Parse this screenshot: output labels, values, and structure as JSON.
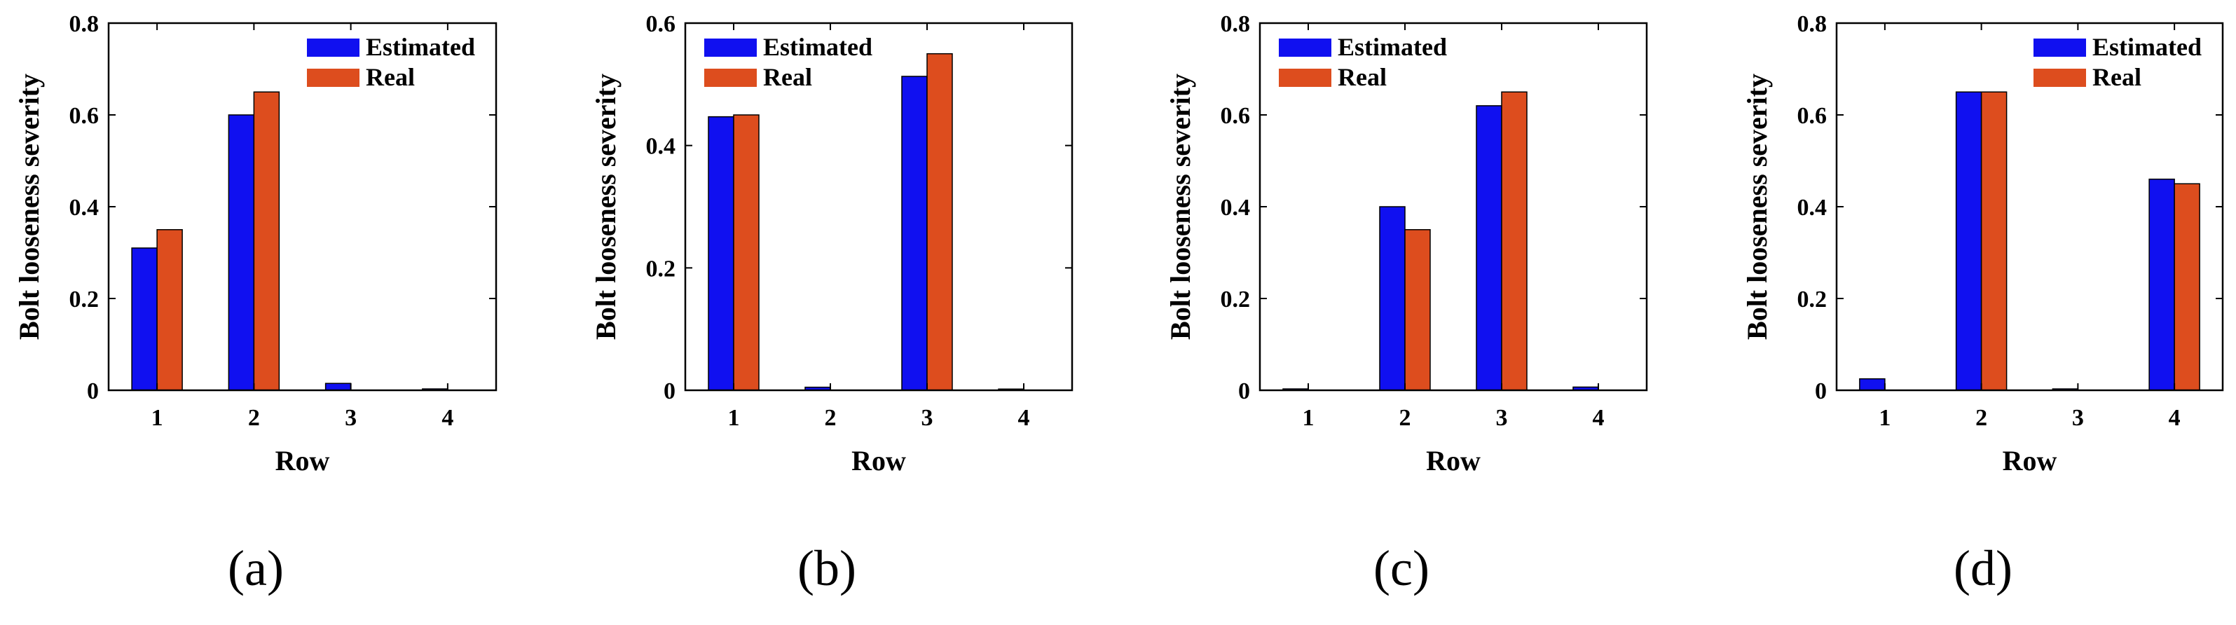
{
  "figure": {
    "colors": {
      "estimated": "#1010f0",
      "real": "#dd4d1e",
      "axis": "#000000"
    }
  },
  "chart_data": [
    {
      "type": "bar",
      "panel_label": "(a)",
      "categories": [
        "1",
        "2",
        "3",
        "4"
      ],
      "series": [
        {
          "name": "Estimated",
          "values": [
            0.31,
            0.6,
            0.015,
            0.003
          ]
        },
        {
          "name": "Real",
          "values": [
            0.35,
            0.65,
            0.0,
            0.0
          ]
        }
      ],
      "xlabel": "Row",
      "ylabel": "Bolt looseness severity",
      "ylim": [
        0,
        0.8
      ],
      "yticks": [
        0,
        0.2,
        0.4,
        0.6,
        0.8
      ],
      "ytick_labels": [
        "0",
        "0.2",
        "0.4",
        "0.6",
        "0.8"
      ],
      "legend_position": "top-right",
      "grid": false
    },
    {
      "type": "bar",
      "panel_label": "(b)",
      "categories": [
        "1",
        "2",
        "3",
        "4"
      ],
      "series": [
        {
          "name": "Estimated",
          "values": [
            0.447,
            0.005,
            0.513,
            0.002
          ]
        },
        {
          "name": "Real",
          "values": [
            0.45,
            0.0,
            0.55,
            0.0
          ]
        }
      ],
      "xlabel": "Row",
      "ylabel": "Bolt looseness severity",
      "ylim": [
        0,
        0.6
      ],
      "yticks": [
        0,
        0.2,
        0.4,
        0.6
      ],
      "ytick_labels": [
        "0",
        "0.2",
        "0.4",
        "0.6"
      ],
      "legend_position": "top-left",
      "grid": false
    },
    {
      "type": "bar",
      "panel_label": "(c)",
      "categories": [
        "1",
        "2",
        "3",
        "4"
      ],
      "series": [
        {
          "name": "Estimated",
          "values": [
            0.003,
            0.4,
            0.62,
            0.007
          ]
        },
        {
          "name": "Real",
          "values": [
            0.0,
            0.35,
            0.65,
            0.0
          ]
        }
      ],
      "xlabel": "Row",
      "ylabel": "Bolt looseness severity",
      "ylim": [
        0,
        0.8
      ],
      "yticks": [
        0,
        0.2,
        0.4,
        0.6,
        0.8
      ],
      "ytick_labels": [
        "0",
        "0.2",
        "0.4",
        "0.6",
        "0.8"
      ],
      "legend_position": "top-left",
      "grid": false
    },
    {
      "type": "bar",
      "panel_label": "(d)",
      "categories": [
        "1",
        "2",
        "3",
        "4"
      ],
      "series": [
        {
          "name": "Estimated",
          "values": [
            0.025,
            0.65,
            0.003,
            0.46
          ]
        },
        {
          "name": "Real",
          "values": [
            0.0,
            0.65,
            0.0,
            0.45
          ]
        }
      ],
      "xlabel": "Row",
      "ylabel": "Bolt looseness severity",
      "ylim": [
        0,
        0.8
      ],
      "yticks": [
        0,
        0.2,
        0.4,
        0.6,
        0.8
      ],
      "ytick_labels": [
        "0",
        "0.2",
        "0.4",
        "0.6",
        "0.8"
      ],
      "legend_position": "top-right",
      "grid": false
    }
  ]
}
